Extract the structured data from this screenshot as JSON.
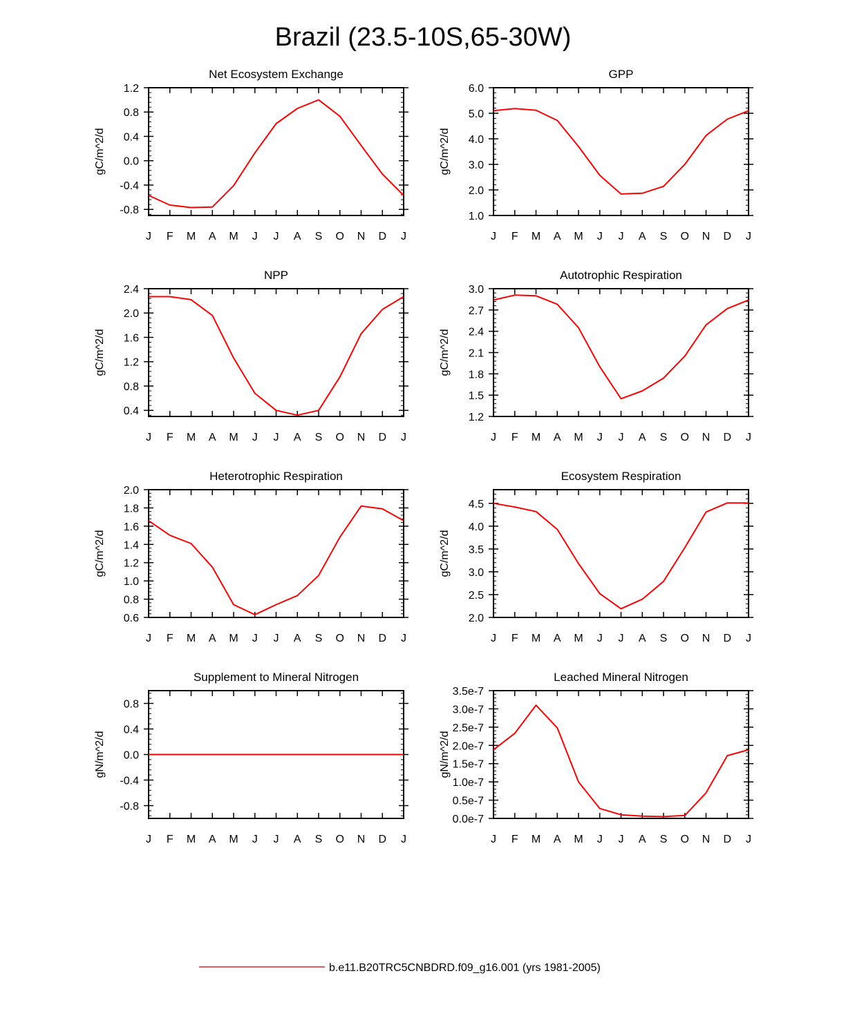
{
  "title": "Brazil (23.5-10S,65-30W)",
  "legend": {
    "label": "b.e11.B20TRC5CNBDRD.f09_g16.001 (yrs 1981-2005)",
    "color": "#d62728"
  },
  "series_color": "#ff0000",
  "chart_data": [
    {
      "type": "line",
      "title": "Net Ecosystem Exchange",
      "ylabel": "gC/m^2/d",
      "xlabel": "",
      "categories": [
        "J",
        "F",
        "M",
        "A",
        "M",
        "J",
        "J",
        "A",
        "S",
        "O",
        "N",
        "D",
        "J"
      ],
      "ylim": [
        -0.9,
        1.2
      ],
      "yticks": [
        "-0.8",
        "-0.4",
        "0.0",
        "0.4",
        "0.8",
        "1.2"
      ],
      "ytick_values": [
        -0.8,
        -0.4,
        0.0,
        0.4,
        0.8,
        1.2
      ],
      "values": [
        -0.57,
        -0.73,
        -0.77,
        -0.76,
        -0.41,
        0.13,
        0.61,
        0.86,
        1.0,
        0.73,
        0.25,
        -0.22,
        -0.57
      ]
    },
    {
      "type": "line",
      "title": "GPP",
      "ylabel": "gC/m^2/d",
      "xlabel": "",
      "categories": [
        "J",
        "F",
        "M",
        "A",
        "M",
        "J",
        "J",
        "A",
        "S",
        "O",
        "N",
        "D",
        "J"
      ],
      "ylim": [
        1.0,
        6.0
      ],
      "yticks": [
        "1.0",
        "2.0",
        "3.0",
        "4.0",
        "5.0",
        "6.0"
      ],
      "ytick_values": [
        1.0,
        2.0,
        3.0,
        4.0,
        5.0,
        6.0
      ],
      "values": [
        5.1,
        5.18,
        5.12,
        4.72,
        3.7,
        2.57,
        1.84,
        1.87,
        2.14,
        3.0,
        4.13,
        4.77,
        5.1
      ]
    },
    {
      "type": "line",
      "title": "NPP",
      "ylabel": "gC/m^2/d",
      "xlabel": "",
      "categories": [
        "J",
        "F",
        "M",
        "A",
        "M",
        "J",
        "J",
        "A",
        "S",
        "O",
        "N",
        "D",
        "J"
      ],
      "ylim": [
        0.3,
        2.4
      ],
      "yticks": [
        "0.4",
        "0.8",
        "1.2",
        "1.6",
        "2.0",
        "2.4"
      ],
      "ytick_values": [
        0.4,
        0.8,
        1.2,
        1.6,
        2.0,
        2.4
      ],
      "values": [
        2.27,
        2.27,
        2.22,
        1.96,
        1.26,
        0.68,
        0.4,
        0.32,
        0.4,
        0.95,
        1.66,
        2.06,
        2.27
      ]
    },
    {
      "type": "line",
      "title": "Autotrophic Respiration",
      "ylabel": "gC/m^2/d",
      "xlabel": "",
      "categories": [
        "J",
        "F",
        "M",
        "A",
        "M",
        "J",
        "J",
        "A",
        "S",
        "O",
        "N",
        "D",
        "J"
      ],
      "ylim": [
        1.2,
        3.0
      ],
      "yticks": [
        "1.2",
        "1.5",
        "1.8",
        "2.1",
        "2.4",
        "2.7",
        "3.0"
      ],
      "ytick_values": [
        1.2,
        1.5,
        1.8,
        2.1,
        2.4,
        2.7,
        3.0
      ],
      "values": [
        2.84,
        2.91,
        2.9,
        2.78,
        2.45,
        1.9,
        1.45,
        1.56,
        1.74,
        2.05,
        2.49,
        2.72,
        2.84
      ]
    },
    {
      "type": "line",
      "title": "Heterotrophic Respiration",
      "ylabel": "gC/m^2/d",
      "xlabel": "",
      "categories": [
        "J",
        "F",
        "M",
        "A",
        "M",
        "J",
        "J",
        "A",
        "S",
        "O",
        "N",
        "D",
        "J"
      ],
      "ylim": [
        0.6,
        2.0
      ],
      "yticks": [
        "0.6",
        "0.8",
        "1.0",
        "1.2",
        "1.4",
        "1.6",
        "1.8",
        "2.0"
      ],
      "ytick_values": [
        0.6,
        0.8,
        1.0,
        1.2,
        1.4,
        1.6,
        1.8,
        2.0
      ],
      "values": [
        1.66,
        1.5,
        1.41,
        1.15,
        0.74,
        0.63,
        0.74,
        0.84,
        1.06,
        1.48,
        1.82,
        1.79,
        1.66
      ]
    },
    {
      "type": "line",
      "title": "Ecosystem Respiration",
      "ylabel": "gC/m^2/d",
      "xlabel": "",
      "categories": [
        "J",
        "F",
        "M",
        "A",
        "M",
        "J",
        "J",
        "A",
        "S",
        "O",
        "N",
        "D",
        "J"
      ],
      "ylim": [
        2.0,
        4.8
      ],
      "yticks": [
        "2.0",
        "2.5",
        "3.0",
        "3.5",
        "4.0",
        "4.5"
      ],
      "ytick_values": [
        2.0,
        2.5,
        3.0,
        3.5,
        4.0,
        4.5
      ],
      "values": [
        4.5,
        4.42,
        4.32,
        3.93,
        3.18,
        2.52,
        2.19,
        2.4,
        2.79,
        3.53,
        4.31,
        4.51,
        4.51
      ]
    },
    {
      "type": "line",
      "title": "Supplement to Mineral Nitrogen",
      "ylabel": "gN/m^2/d",
      "xlabel": "",
      "categories": [
        "J",
        "F",
        "M",
        "A",
        "M",
        "J",
        "J",
        "A",
        "S",
        "O",
        "N",
        "D",
        "J"
      ],
      "ylim": [
        -1.0,
        1.0
      ],
      "yticks": [
        "-0.8",
        "-0.4",
        "0.0",
        "0.4",
        "0.8"
      ],
      "ytick_values": [
        -0.8,
        -0.4,
        0.0,
        0.4,
        0.8
      ],
      "values": [
        0,
        0,
        0,
        0,
        0,
        0,
        0,
        0,
        0,
        0,
        0,
        0,
        0
      ]
    },
    {
      "type": "line",
      "title": "Leached Mineral Nitrogen",
      "ylabel": "gN/m^2/d",
      "xlabel": "",
      "categories": [
        "J",
        "F",
        "M",
        "A",
        "M",
        "J",
        "J",
        "A",
        "S",
        "O",
        "N",
        "D",
        "J"
      ],
      "ylim": [
        0.0,
        3.5e-07
      ],
      "yticks": [
        "0.0e-7",
        "0.5e-7",
        "1.0e-7",
        "1.5e-7",
        "2.0e-7",
        "2.5e-7",
        "3.0e-7",
        "3.5e-7"
      ],
      "ytick_values": [
        0.0,
        5e-08,
        1e-07,
        1.5e-07,
        2e-07,
        2.5e-07,
        3e-07,
        3.5e-07
      ],
      "values": [
        1.88e-07,
        2.33e-07,
        3.1e-07,
        2.48e-07,
        1e-07,
        2.7e-08,
        1e-08,
        6e-09,
        5e-09,
        8e-09,
        7e-08,
        1.72e-07,
        1.88e-07
      ]
    }
  ]
}
